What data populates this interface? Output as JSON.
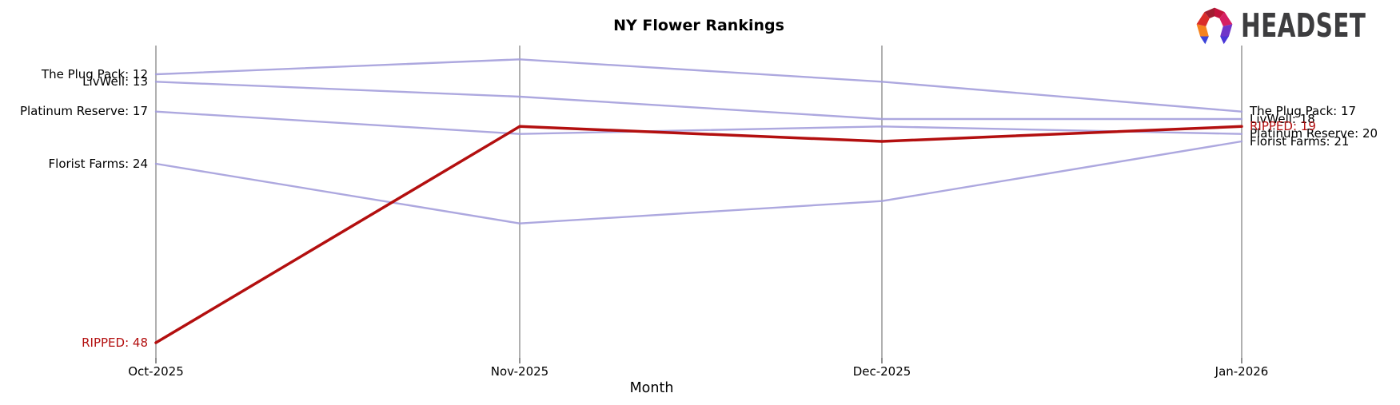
{
  "header": {
    "brand": "HEADSET"
  },
  "chart_data": {
    "type": "line",
    "variant": "ranking-bump",
    "title": "NY Flower Rankings",
    "xlabel": "Month",
    "categories": [
      "Oct-2025",
      "Nov-2025",
      "Dec-2025",
      "Jan-2026"
    ],
    "y_axis": {
      "measure": "rank",
      "inverted": true,
      "best_rank_at_top": true,
      "visible_range": [
        10,
        48
      ]
    },
    "grid": "vertical month gridlines only",
    "legend": "none (inline start/end labels)",
    "series": [
      {
        "name": "The Plug Pack",
        "values": [
          12,
          10,
          13,
          17
        ],
        "color": "#a49edb",
        "start_label": "The Plug Pack: 12",
        "end_label": "The Plug Pack: 17",
        "highlighted": false
      },
      {
        "name": "LivWell",
        "values": [
          13,
          15,
          18,
          18
        ],
        "color": "#a49edb",
        "start_label": "LivWell: 13",
        "end_label": "LivWell: 18",
        "highlighted": false
      },
      {
        "name": "Platinum Reserve",
        "values": [
          17,
          20,
          19,
          20
        ],
        "color": "#a49edb",
        "start_label": "Platinum Reserve: 17",
        "end_label": "Platinum Reserve: 20",
        "highlighted": false
      },
      {
        "name": "Florist Farms",
        "values": [
          24,
          32,
          29,
          21
        ],
        "color": "#a49edb",
        "start_label": "Florist Farms: 24",
        "end_label": "Florist Farms: 21",
        "highlighted": false
      },
      {
        "name": "RIPPED",
        "values": [
          48,
          19,
          21,
          19
        ],
        "color": "#b30f0f",
        "start_label": "RIPPED: 48",
        "end_label": "RIPPED: 19",
        "highlighted": true
      }
    ]
  },
  "colors": {
    "highlight": "#b30f0f",
    "series_default": "#a49edb",
    "axis_line": "#b0b0b0",
    "tick_mark": "#222222",
    "text": "#000000",
    "logo_text": "#3d3d3f"
  }
}
